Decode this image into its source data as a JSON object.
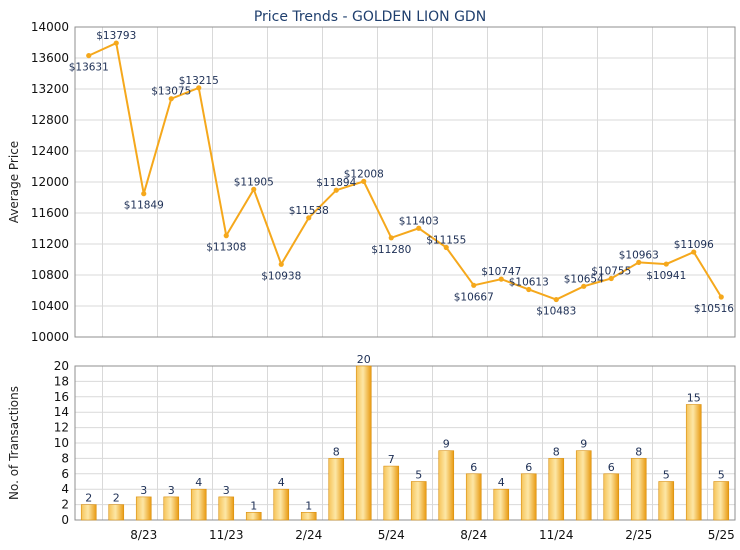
{
  "chart_data": [
    {
      "type": "line",
      "title": "Price Trends - GOLDEN LION GDN",
      "ylabel": "Average Price",
      "ylim": [
        10000,
        14000
      ],
      "yticks": [
        10000,
        10400,
        10800,
        11200,
        11600,
        12000,
        12400,
        12800,
        13200,
        13600,
        14000
      ],
      "series": [
        {
          "values": [
            13631,
            13793,
            11849,
            13075,
            13215,
            11308,
            11905,
            10938,
            11538,
            11894,
            12008,
            11280,
            11403,
            11155,
            10667,
            10747,
            10613,
            10483,
            10654,
            10755,
            10963,
            10941,
            11096,
            10516
          ],
          "labels": [
            "$13631",
            "$13793",
            "$11849",
            "$13075",
            "$13215",
            "$11308",
            "$11905",
            "$10938",
            "$11538",
            "$11894",
            "$12008",
            "$11280",
            "$11403",
            "$11155",
            "$10667",
            "$10747",
            "$10613",
            "$10483",
            "$10654",
            "$10755",
            "$10963",
            "$10941",
            "$11096",
            "$10516"
          ]
        }
      ],
      "color": "#f5a81c",
      "grid": true
    },
    {
      "type": "bar",
      "ylabel": "No. of Transactions",
      "ylim": [
        0,
        20
      ],
      "yticks": [
        0,
        2,
        4,
        6,
        8,
        10,
        12,
        14,
        16,
        18,
        20
      ],
      "values": [
        2,
        2,
        3,
        3,
        4,
        3,
        1,
        4,
        1,
        8,
        20,
        7,
        5,
        9,
        6,
        4,
        6,
        8,
        9,
        6,
        8,
        5,
        15,
        5
      ],
      "xtick_labels": [
        {
          "index": 2,
          "label": "8/23"
        },
        {
          "index": 5,
          "label": "11/23"
        },
        {
          "index": 8,
          "label": "2/24"
        },
        {
          "index": 11,
          "label": "5/24"
        },
        {
          "index": 14,
          "label": "8/24"
        },
        {
          "index": 17,
          "label": "11/24"
        },
        {
          "index": 20,
          "label": "2/25"
        },
        {
          "index": 23,
          "label": "5/25"
        }
      ],
      "color": "#f2ac22",
      "grid": true
    }
  ]
}
